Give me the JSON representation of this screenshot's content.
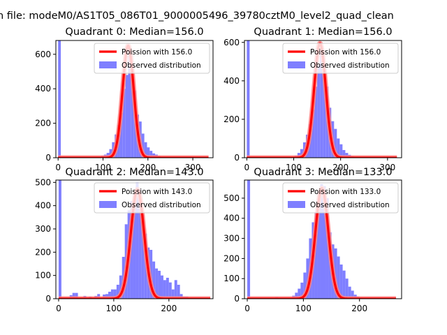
{
  "figure": {
    "suptitle": "n file: modeM0/AS1T05_086T01_9000005496_39780cztM0_level2_quad_clean"
  },
  "colors": {
    "hist": "#7f7fff",
    "fit": "#ff0000",
    "fit_glow": "#ff8080",
    "axis": "#000000"
  },
  "chart_data": [
    {
      "type": "bar",
      "title": "Quadrant 0: Median=156.0",
      "xlim": [
        -5,
        345
      ],
      "ylim": [
        0,
        680
      ],
      "xticks": [
        0,
        100,
        200,
        300
      ],
      "yticks": [
        0,
        200,
        400,
        600
      ],
      "legend": {
        "placement": "top-right",
        "entries": [
          "Poission with 156.0",
          "Observed distribution"
        ]
      },
      "bin_width": 6,
      "bins": [
        [
          0,
          680
        ],
        [
          90,
          5
        ],
        [
          96,
          12
        ],
        [
          102,
          18
        ],
        [
          108,
          28
        ],
        [
          114,
          50
        ],
        [
          120,
          90
        ],
        [
          126,
          135
        ],
        [
          132,
          190
        ],
        [
          138,
          260
        ],
        [
          144,
          400
        ],
        [
          150,
          480
        ],
        [
          156,
          640
        ],
        [
          162,
          520
        ],
        [
          168,
          390
        ],
        [
          174,
          250
        ],
        [
          180,
          210
        ],
        [
          186,
          140
        ],
        [
          192,
          90
        ],
        [
          198,
          60
        ],
        [
          204,
          40
        ],
        [
          210,
          25
        ],
        [
          216,
          18
        ],
        [
          222,
          10
        ],
        [
          228,
          6
        ],
        [
          234,
          4
        ],
        [
          240,
          2
        ]
      ],
      "fit": {
        "mu": 156,
        "peak": 650,
        "x_range": [
          0,
          335
        ]
      }
    },
    {
      "type": "bar",
      "title": "Quadrant 1: Median=156.0",
      "xlim": [
        -5,
        330
      ],
      "ylim": [
        0,
        610
      ],
      "xticks": [
        0,
        100,
        200,
        300
      ],
      "yticks": [
        0,
        200,
        400,
        600
      ],
      "legend": {
        "placement": "top-right",
        "entries": [
          "Poission with 156.0",
          "Observed distribution"
        ]
      },
      "bin_width": 6,
      "bins": [
        [
          0,
          610
        ],
        [
          96,
          5
        ],
        [
          102,
          12
        ],
        [
          108,
          25
        ],
        [
          114,
          45
        ],
        [
          120,
          80
        ],
        [
          126,
          120
        ],
        [
          132,
          175
        ],
        [
          138,
          250
        ],
        [
          144,
          370
        ],
        [
          150,
          480
        ],
        [
          156,
          580
        ],
        [
          162,
          470
        ],
        [
          168,
          370
        ],
        [
          174,
          260
        ],
        [
          180,
          190
        ],
        [
          186,
          150
        ],
        [
          192,
          100
        ],
        [
          198,
          70
        ],
        [
          204,
          40
        ],
        [
          210,
          25
        ],
        [
          216,
          15
        ],
        [
          222,
          8
        ],
        [
          228,
          5
        ],
        [
          234,
          2
        ]
      ],
      "fit": {
        "mu": 156,
        "peak": 595,
        "x_range": [
          0,
          320
        ]
      }
    },
    {
      "type": "bar",
      "title": "Quadrant 2: Median=143.0",
      "xlim": [
        -5,
        280
      ],
      "ylim": [
        0,
        510
      ],
      "xticks": [
        0,
        100,
        200
      ],
      "yticks": [
        0,
        100,
        200,
        300,
        400,
        500
      ],
      "legend": {
        "placement": "top-right",
        "entries": [
          "Poission with 143.0",
          "Observed distribution"
        ]
      },
      "bin_width": 5,
      "bins": [
        [
          0,
          510
        ],
        [
          20,
          15
        ],
        [
          25,
          25
        ],
        [
          30,
          25
        ],
        [
          45,
          12
        ],
        [
          55,
          10
        ],
        [
          65,
          12
        ],
        [
          70,
          20
        ],
        [
          80,
          18
        ],
        [
          85,
          20
        ],
        [
          90,
          30
        ],
        [
          95,
          40
        ],
        [
          100,
          40
        ],
        [
          105,
          60
        ],
        [
          110,
          100
        ],
        [
          115,
          180
        ],
        [
          120,
          320
        ],
        [
          125,
          380
        ],
        [
          130,
          420
        ],
        [
          135,
          450
        ],
        [
          140,
          500
        ],
        [
          145,
          470
        ],
        [
          150,
          360
        ],
        [
          155,
          280
        ],
        [
          160,
          220
        ],
        [
          165,
          210
        ],
        [
          170,
          160
        ],
        [
          175,
          130
        ],
        [
          180,
          120
        ],
        [
          185,
          100
        ],
        [
          190,
          80
        ],
        [
          195,
          90
        ],
        [
          200,
          70
        ],
        [
          205,
          40
        ],
        [
          210,
          80
        ],
        [
          215,
          60
        ],
        [
          220,
          20
        ],
        [
          225,
          10
        ],
        [
          230,
          10
        ]
      ],
      "fit": {
        "mu": 143,
        "peak": 470,
        "x_range": [
          0,
          275
        ]
      }
    },
    {
      "type": "bar",
      "title": "Quadrant 3: Median=133.0",
      "xlim": [
        -5,
        275
      ],
      "ylim": [
        0,
        590
      ],
      "xticks": [
        0,
        100,
        200
      ],
      "yticks": [
        0,
        100,
        200,
        300,
        400,
        500
      ],
      "legend": {
        "placement": "top-right",
        "entries": [
          "Poission with 133.0",
          "Observed distribution"
        ]
      },
      "bin_width": 5,
      "bins": [
        [
          0,
          590
        ],
        [
          50,
          8
        ],
        [
          80,
          15
        ],
        [
          85,
          30
        ],
        [
          90,
          50
        ],
        [
          95,
          80
        ],
        [
          100,
          130
        ],
        [
          105,
          200
        ],
        [
          110,
          300
        ],
        [
          115,
          380
        ],
        [
          120,
          430
        ],
        [
          125,
          530
        ],
        [
          130,
          570
        ],
        [
          135,
          560
        ],
        [
          140,
          500
        ],
        [
          145,
          330
        ],
        [
          150,
          270
        ],
        [
          155,
          250
        ],
        [
          160,
          210
        ],
        [
          165,
          170
        ],
        [
          170,
          140
        ],
        [
          175,
          100
        ],
        [
          180,
          60
        ],
        [
          185,
          40
        ],
        [
          190,
          20
        ],
        [
          195,
          12
        ],
        [
          200,
          6
        ],
        [
          205,
          3
        ]
      ],
      "fit": {
        "mu": 133,
        "peak": 550,
        "x_range": [
          0,
          265
        ]
      }
    }
  ]
}
